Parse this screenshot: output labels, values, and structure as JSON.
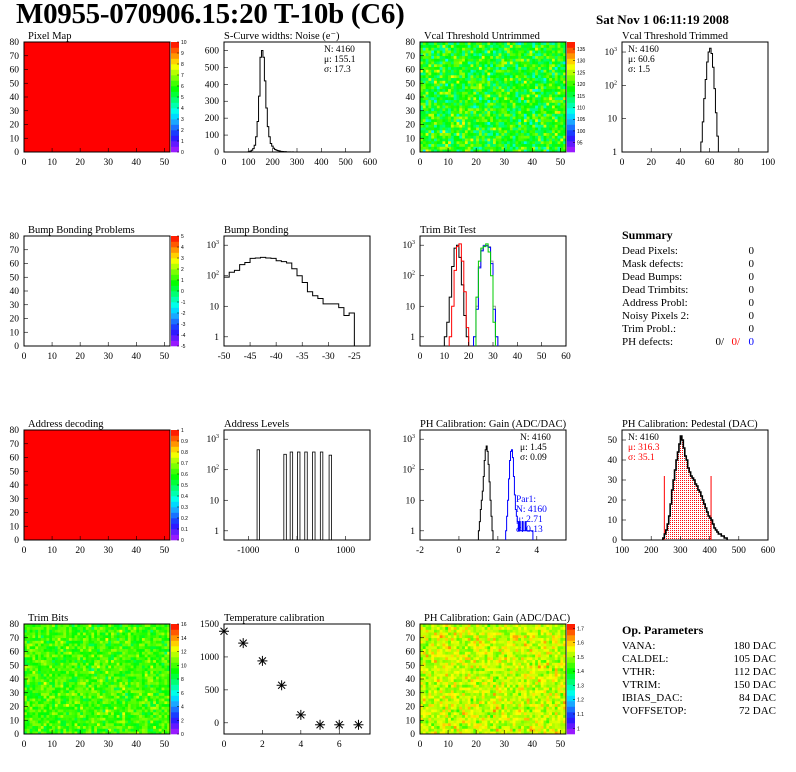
{
  "header": {
    "title": "M0955-070906.15:20 T-10b (C6)",
    "date": "Sat Nov  1 06:11:19 2008"
  },
  "summary": {
    "title": "Summary",
    "rows": [
      {
        "label": "Dead Pixels:",
        "value": "0"
      },
      {
        "label": "Mask defects:",
        "value": "0"
      },
      {
        "label": "Dead Bumps:",
        "value": "0"
      },
      {
        "label": "Dead Trimbits:",
        "value": "0"
      },
      {
        "label": "Address Probl:",
        "value": "0"
      },
      {
        "label": "Noisy Pixels 2:",
        "value": "0"
      },
      {
        "label": "Trim Probl.:",
        "value": "0"
      }
    ],
    "ph_label": "PH defects:",
    "ph_values": [
      "0/",
      "0/",
      "0"
    ],
    "ph_colors": [
      "#000000",
      "#ff0000",
      "#0000ff"
    ]
  },
  "op_params": {
    "title": "Op. Parameters",
    "rows": [
      {
        "label": "VANA:",
        "value": "180 DAC"
      },
      {
        "label": "CALDEL:",
        "value": "105 DAC"
      },
      {
        "label": "VTHR:",
        "value": "112 DAC"
      },
      {
        "label": "VTRIM:",
        "value": "150 DAC"
      },
      {
        "label": "IBIAS_DAC:",
        "value": "84 DAC"
      },
      {
        "label": "VOFFSETOP:",
        "value": "72 DAC"
      }
    ]
  },
  "chart_data": [
    {
      "type": "heatmap",
      "title": "Pixel Map",
      "xlim": [
        0,
        52
      ],
      "ylim": [
        0,
        80
      ],
      "xticks": [
        0,
        10,
        20,
        30,
        40,
        50
      ],
      "yticks": [
        0,
        10,
        20,
        30,
        40,
        50,
        60,
        70,
        80
      ],
      "zlim": [
        0,
        10
      ],
      "zticks": [
        0,
        1,
        2,
        3,
        4,
        5,
        6,
        7,
        8,
        9,
        10
      ],
      "uniform_value": 10
    },
    {
      "type": "histogram",
      "title": "S-Curve widths: Noise (e⁻)",
      "xlim": [
        0,
        600
      ],
      "ylim": [
        0,
        650
      ],
      "xticks": [
        0,
        100,
        200,
        300,
        400,
        500,
        600
      ],
      "yticks": [
        0,
        100,
        200,
        300,
        400,
        500,
        600
      ],
      "series": [
        {
          "color": "#000000",
          "x_start": 100,
          "bin_width": 6,
          "counts": [
            2,
            5,
            10,
            20,
            40,
            90,
            180,
            330,
            560,
            600,
            560,
            420,
            260,
            150,
            90,
            50,
            35,
            22,
            15,
            10,
            8,
            6,
            4,
            3,
            2,
            2,
            1,
            1,
            1,
            0,
            1
          ]
        }
      ],
      "stats": [
        {
          "text": "N: 4160",
          "color": "#000000"
        },
        {
          "text": "μ: 155.1",
          "color": "#000000"
        },
        {
          "text": "σ: 17.3",
          "color": "#000000"
        }
      ]
    },
    {
      "type": "heatmap",
      "title": "Vcal Threshold Untrimmed",
      "xlim": [
        0,
        52
      ],
      "ylim": [
        0,
        80
      ],
      "xticks": [
        0,
        10,
        20,
        30,
        40,
        50
      ],
      "yticks": [
        0,
        10,
        20,
        30,
        40,
        50,
        60,
        70,
        80
      ],
      "zlim": [
        91,
        138
      ],
      "zticks": [
        95,
        100,
        105,
        110,
        115,
        120,
        125,
        130,
        135
      ],
      "mean": 118,
      "spread": 6
    },
    {
      "type": "histogram",
      "title": "Vcal Threshold Trimmed",
      "log_y": true,
      "xlim": [
        0,
        100
      ],
      "ylim": [
        1,
        2000
      ],
      "xticks": [
        0,
        20,
        40,
        60,
        80,
        100
      ],
      "yticks": [
        1,
        10,
        100,
        1000
      ],
      "series": [
        {
          "color": "#000000",
          "x_start": 54,
          "bin_width": 1,
          "counts": [
            2,
            8,
            40,
            150,
            500,
            1000,
            1300,
            900,
            350,
            80,
            15,
            3
          ]
        }
      ],
      "stats": [
        {
          "text": "N: 4160",
          "color": "#000000"
        },
        {
          "text": "μ: 60.6",
          "color": "#000000"
        },
        {
          "text": "σ:  1.5",
          "color": "#000000"
        }
      ]
    },
    {
      "type": "heatmap",
      "title": "Bump Bonding Problems",
      "xlim": [
        0,
        52
      ],
      "ylim": [
        0,
        80
      ],
      "xticks": [
        0,
        10,
        20,
        30,
        40,
        50
      ],
      "yticks": [
        0,
        10,
        20,
        30,
        40,
        50,
        60,
        70,
        80
      ],
      "zlim": [
        -5,
        5
      ],
      "zticks": [
        -5,
        -4,
        -3,
        -2,
        -1,
        0,
        1,
        2,
        3,
        4,
        5
      ],
      "empty": true
    },
    {
      "type": "histogram",
      "title": "Bump Bonding",
      "log_y": true,
      "xlim": [
        -50,
        -22
      ],
      "ylim": [
        0.5,
        2000
      ],
      "xticks": [
        -50,
        -45,
        -40,
        -35,
        -30,
        -25
      ],
      "yticks": [
        1,
        10,
        100,
        1000
      ],
      "series": [
        {
          "color": "#000000",
          "x_start": -50,
          "bin_width": 1,
          "counts": [
            90,
            130,
            150,
            230,
            270,
            370,
            380,
            400,
            380,
            370,
            310,
            290,
            260,
            170,
            100,
            60,
            30,
            22,
            18,
            12,
            12,
            12,
            9,
            5,
            6
          ]
        }
      ]
    },
    {
      "type": "histogram",
      "title": "Trim Bit Test",
      "log_y": true,
      "xlim": [
        0,
        60
      ],
      "ylim": [
        0.5,
        2000
      ],
      "xticks": [
        0,
        10,
        20,
        30,
        40,
        50,
        60
      ],
      "yticks": [
        1,
        10,
        100,
        1000
      ],
      "series": [
        {
          "color": "#000000",
          "x_start": 10,
          "bin_width": 1,
          "counts": [
            1,
            3,
            20,
            200,
            800,
            1000,
            400,
            50,
            5,
            1
          ]
        },
        {
          "color": "#ff0000",
          "x_start": 12,
          "bin_width": 1,
          "counts": [
            1,
            10,
            150,
            900,
            1100,
            300,
            30,
            2
          ]
        },
        {
          "color": "#999999",
          "x_start": 22,
          "bin_width": 1,
          "counts": [
            1,
            10,
            200,
            700,
            1000,
            1000,
            900,
            300,
            10,
            1
          ]
        },
        {
          "color": "#0000ff",
          "x_start": 22,
          "bin_width": 1,
          "counts": [
            1,
            8,
            180,
            650,
            950,
            950,
            850,
            250,
            8,
            1
          ]
        },
        {
          "color": "#00cc00",
          "x_start": 23,
          "bin_width": 1,
          "counts": [
            20,
            300,
            800,
            900,
            1100,
            600,
            100,
            3
          ]
        }
      ]
    },
    {
      "type": "heatmap",
      "title": "Address decoding",
      "xlim": [
        0,
        52
      ],
      "ylim": [
        0,
        80
      ],
      "xticks": [
        0,
        10,
        20,
        30,
        40,
        50
      ],
      "yticks": [
        0,
        10,
        20,
        30,
        40,
        50,
        60,
        70,
        80
      ],
      "zlim": [
        0,
        1
      ],
      "zticks": [
        0,
        0.1,
        0.2,
        0.3,
        0.4,
        0.5,
        0.6,
        0.7,
        0.8,
        0.9,
        1
      ],
      "uniform_value": 1
    },
    {
      "type": "spikes",
      "title": "Address Levels",
      "log_y": true,
      "xlim": [
        -1500,
        1500
      ],
      "ylim": [
        0.5,
        2000
      ],
      "xticks": [
        -1000,
        0,
        1000
      ],
      "yticks": [
        1,
        10,
        100,
        1000
      ],
      "peaks": [
        {
          "x": -800,
          "y": 450
        },
        {
          "x": -250,
          "y": 320
        },
        {
          "x": -120,
          "y": 380
        },
        {
          "x": 30,
          "y": 380
        },
        {
          "x": 180,
          "y": 380
        },
        {
          "x": 340,
          "y": 380
        },
        {
          "x": 500,
          "y": 380
        },
        {
          "x": 680,
          "y": 300
        }
      ]
    },
    {
      "type": "histogram",
      "title": "PH Calibration: Gain (ADC/DAC)",
      "log_y": true,
      "xlim": [
        -2,
        5.5
      ],
      "ylim": [
        0.5,
        2000
      ],
      "xticks": [
        -2,
        0,
        2,
        4
      ],
      "yticks": [
        1,
        10,
        100,
        1000
      ],
      "series": [
        {
          "color": "#000000",
          "x_start": 1.0,
          "bin_width": 0.05,
          "counts": [
            1,
            2,
            5,
            10,
            20,
            60,
            200,
            450,
            600,
            400,
            150,
            40,
            10,
            3,
            1
          ]
        },
        {
          "color": "#0000ff",
          "x_start": 2.4,
          "bin_width": 0.05,
          "counts": [
            1,
            3,
            10,
            50,
            200,
            400,
            450,
            250,
            60,
            15,
            5,
            3,
            2,
            1,
            2,
            1,
            1,
            2,
            1,
            1,
            2,
            1,
            1,
            1,
            1,
            1,
            1,
            1
          ]
        }
      ],
      "stats": [
        {
          "text": "N: 4160",
          "color": "#000000"
        },
        {
          "text": "μ: 1.45",
          "color": "#000000"
        },
        {
          "text": "σ: 0.09",
          "color": "#000000"
        }
      ],
      "stats2": [
        {
          "text": "Par1:",
          "color": "#0000ff"
        },
        {
          "text": "N: 4160",
          "color": "#0000ff"
        },
        {
          "text": "μ: 2.71",
          "color": "#0000ff"
        },
        {
          "text": "σ: 0.13",
          "color": "#0000ff"
        }
      ]
    },
    {
      "type": "histogram",
      "title": "PH Calibration: Pedestal (DAC)",
      "xlim": [
        100,
        600
      ],
      "ylim": [
        0,
        55
      ],
      "xticks": [
        100,
        200,
        300,
        400,
        500,
        600
      ],
      "yticks": [
        0,
        10,
        20,
        30,
        40,
        50
      ],
      "fit_range": [
        245,
        405
      ],
      "fit_color": "#ff0000",
      "series": [
        {
          "color": "#000000",
          "x_start": 240,
          "bin_width": 5,
          "counts": [
            1,
            3,
            5,
            8,
            12,
            18,
            25,
            30,
            35,
            40,
            44,
            48,
            52,
            50,
            46,
            42,
            40,
            36,
            34,
            32,
            31,
            30,
            28,
            27,
            25,
            24,
            22,
            20,
            18,
            16,
            14,
            12,
            11,
            10,
            8,
            6,
            5,
            4,
            3,
            3,
            2,
            2,
            1,
            1
          ]
        }
      ],
      "stats": [
        {
          "text": "N: 4160",
          "color": "#000000"
        },
        {
          "text": "μ: 316.3",
          "color": "#ff0000"
        },
        {
          "text": "σ: 35.1",
          "color": "#ff0000"
        }
      ]
    },
    {
      "type": "heatmap",
      "title": "Trim Bits",
      "xlim": [
        0,
        52
      ],
      "ylim": [
        0,
        80
      ],
      "xticks": [
        0,
        10,
        20,
        30,
        40,
        50
      ],
      "yticks": [
        0,
        10,
        20,
        30,
        40,
        50,
        60,
        70,
        80
      ],
      "zlim": [
        0,
        16
      ],
      "zticks": [
        0,
        2,
        4,
        6,
        8,
        10,
        12,
        14,
        16
      ],
      "mean": 10,
      "spread": 1.3
    },
    {
      "type": "scatter",
      "title": "Temperature calibration",
      "marker": "star",
      "xlim": [
        0,
        7.6
      ],
      "ylim": [
        -170,
        1500
      ],
      "xticks": [
        0,
        2,
        4,
        6
      ],
      "yticks": [
        0,
        500,
        1000,
        1500
      ],
      "x": [
        0,
        1,
        2,
        3,
        4,
        5,
        6,
        7
      ],
      "y": [
        1390,
        1210,
        940,
        570,
        120,
        -30,
        -30,
        -30
      ]
    },
    {
      "type": "heatmap",
      "title": "PH Calibration: Gain (ADC/DAC)",
      "xlim": [
        0,
        52
      ],
      "ylim": [
        0,
        80
      ],
      "xticks": [
        0,
        10,
        20,
        30,
        40,
        50
      ],
      "yticks": [
        0,
        10,
        20,
        30,
        40,
        50,
        60,
        70,
        80
      ],
      "zlim": [
        0.96,
        1.73
      ],
      "zticks": [
        1,
        1.1,
        1.2,
        1.3,
        1.4,
        1.5,
        1.6,
        1.7
      ],
      "mean": 1.53,
      "spread": 0.06
    }
  ]
}
